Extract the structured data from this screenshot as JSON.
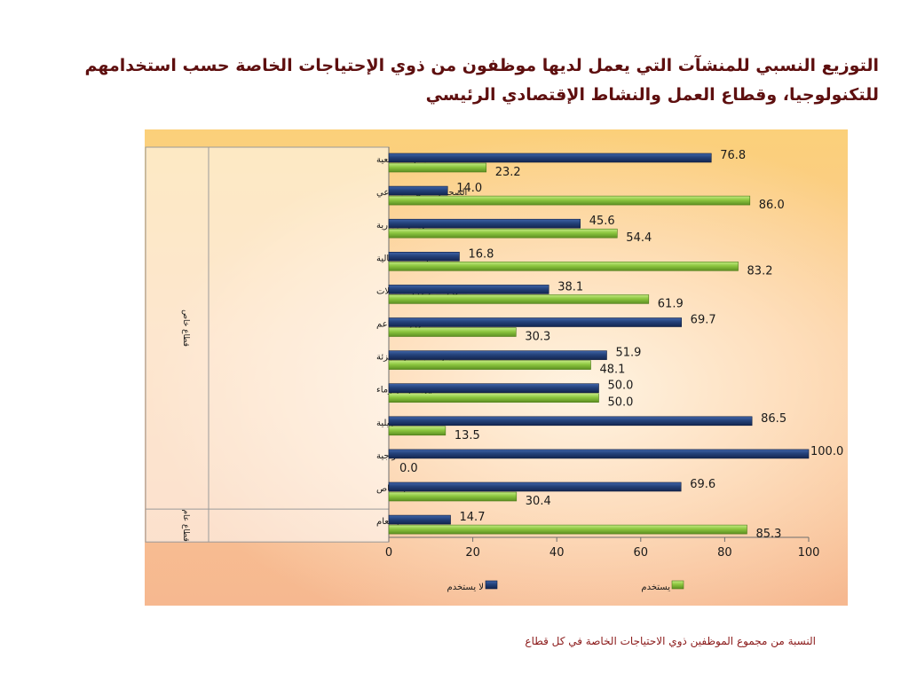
{
  "title": "التوزيع النسبي للمنشآت التي يعمل لديها موظفون من ذوي الإحتياجات الخاصة حسب استخدامهم للتكنولوجيا، وقطاع العمل والنشاط الإقتصادي الرئيسي",
  "caption": "النسبة من مجموع الموظفين ذوي الاحتياجات الخاصة في كل قطاع",
  "colors": {
    "not_using": "#24427a",
    "using": "#8cc63f",
    "title": "#5e0f0f",
    "caption": "#8b1a1a"
  },
  "chart_data": {
    "type": "bar",
    "orientation": "horizontal",
    "xlim": [
      0,
      100
    ],
    "xticks": [
      0,
      20,
      40,
      60,
      80,
      100
    ],
    "categories": [
      "الأنشطة الخدمية والمجتمعية",
      "الصحة والعمل الاجتماعي",
      "الأنشطة العقارية والايجارية",
      "الوساطة المالية",
      "النقل والتخزين والاتصالات",
      "الفنادق والمطاعم",
      "تجارة الجملة والتجزئة",
      "كهرباء وغاز وماء",
      "صناعة تحويلية",
      "استخراجية",
      "القطاع الخاص",
      "القطاع العام"
    ],
    "value_labels": [
      [
        "76.8",
        "23.2"
      ],
      [
        "14.0",
        "86.0"
      ],
      [
        "45.6",
        "54.4"
      ],
      [
        "16.8",
        "83.2"
      ],
      [
        "38.1",
        "61.9"
      ],
      [
        "69.7",
        "30.3"
      ],
      [
        "51.9",
        "48.1"
      ],
      [
        "50.0",
        "50.0"
      ],
      [
        "86.5",
        "13.5"
      ],
      [
        "100.0",
        "0.0"
      ],
      [
        "69.6",
        "30.4"
      ],
      [
        "14.7",
        "85.3"
      ]
    ],
    "series": [
      {
        "name": "لا يستخدم",
        "values": [
          76.8,
          14.0,
          45.6,
          16.8,
          38.1,
          69.7,
          51.9,
          50.0,
          86.5,
          100.0,
          69.6,
          14.7
        ]
      },
      {
        "name": "يستخدم",
        "values": [
          23.2,
          86.0,
          54.4,
          83.2,
          61.9,
          30.3,
          48.1,
          50.0,
          13.5,
          0.0,
          30.4,
          85.3
        ]
      }
    ],
    "groups": [
      {
        "label": "قطاع خاص",
        "categories": [
          0,
          10
        ]
      },
      {
        "label": "قطاع عام",
        "categories": [
          11,
          11
        ]
      }
    ],
    "legend_position": "bottom",
    "grid": false
  }
}
